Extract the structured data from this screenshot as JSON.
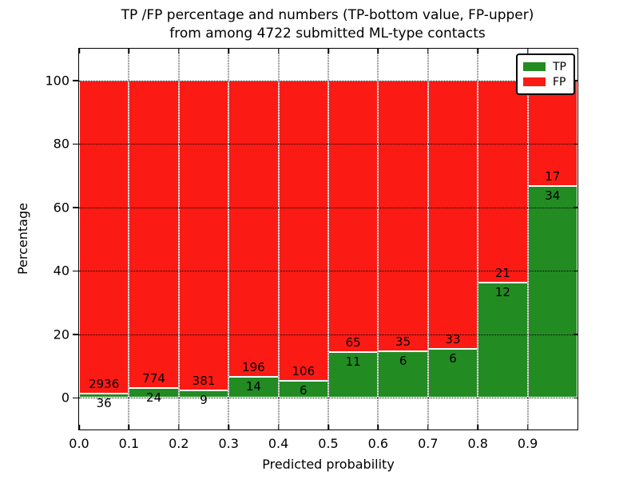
{
  "figure": {
    "title_line1": "TP /FP percentage and numbers (TP-bottom value, FP-upper)",
    "title_line2": "from among 4722 submitted ML-type contacts",
    "xlabel": "Predicted probability",
    "ylabel": "Percentage"
  },
  "legend": {
    "items": [
      {
        "label": "TP",
        "color": "#228b22"
      },
      {
        "label": "FP",
        "color": "#fb1b14"
      }
    ]
  },
  "chart_data": {
    "type": "bar",
    "stacked": true,
    "title": "TP /FP percentage and numbers (TP-bottom value, FP-upper) from among 4722 submitted ML-type contacts",
    "xlabel": "Predicted probability",
    "ylabel": "Percentage",
    "total_contacts": 4722,
    "x_bin_start": [
      0.0,
      0.1,
      0.2,
      0.3,
      0.4,
      0.5,
      0.6,
      0.7,
      0.8,
      0.9
    ],
    "bin_width": 0.1,
    "xtick_labels": [
      "0.0",
      "0.1",
      "0.2",
      "0.3",
      "0.4",
      "0.5",
      "0.6",
      "0.7",
      "0.8",
      "0.9"
    ],
    "ytick_values": [
      0,
      20,
      40,
      60,
      80,
      100
    ],
    "xlim": [
      0.0,
      1.0
    ],
    "ylim": [
      -10,
      110
    ],
    "grid": true,
    "grid_style": "dotted",
    "legend_position": "upper right",
    "series": [
      {
        "name": "TP",
        "color": "#228b22",
        "counts": [
          36,
          24,
          9,
          14,
          6,
          11,
          6,
          6,
          12,
          34
        ],
        "percent": [
          1.21,
          3.01,
          2.31,
          6.67,
          5.36,
          14.47,
          14.63,
          15.38,
          36.36,
          66.67
        ]
      },
      {
        "name": "FP",
        "color": "#fb1b14",
        "counts": [
          2936,
          774,
          381,
          196,
          106,
          65,
          35,
          33,
          21,
          17
        ],
        "percent": [
          98.79,
          96.99,
          97.69,
          93.33,
          94.64,
          85.53,
          85.37,
          84.62,
          63.64,
          33.33
        ]
      }
    ]
  }
}
